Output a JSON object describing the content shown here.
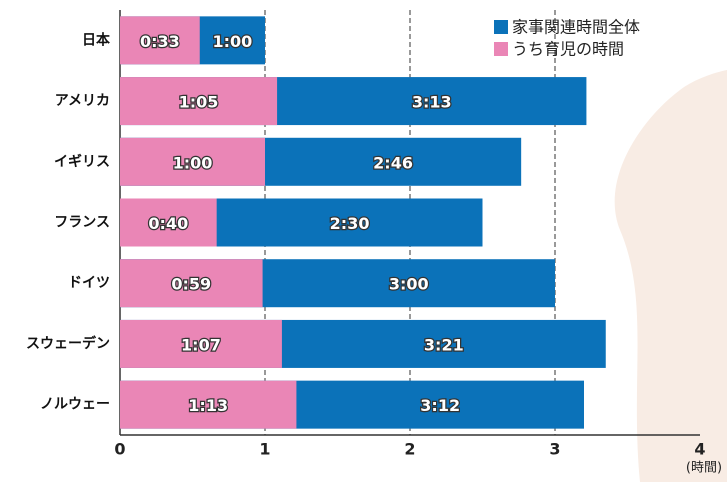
{
  "chart_data": {
    "type": "bar",
    "orientation": "horizontal",
    "categories": [
      "日本",
      "アメリカ",
      "イギリス",
      "フランス",
      "ドイツ",
      "スウェーデン",
      "ノルウェー"
    ],
    "series": [
      {
        "name": "家事関連時間全体",
        "color": "#0b72b9",
        "values": [
          1,
          3.216667,
          2.766667,
          2.5,
          3,
          3.35,
          3.2
        ],
        "value_labels": [
          "1:00",
          "3:13",
          "2:46",
          "2:30",
          "3:00",
          "3:21",
          "3:12"
        ]
      },
      {
        "name": "うち育児の時間",
        "color": "#ea86b6",
        "values": [
          0.55,
          1.083333,
          1,
          0.666667,
          0.983333,
          1.116667,
          1.216667
        ],
        "value_labels": [
          "0:33",
          "1:05",
          "1:00",
          "0:40",
          "0:59",
          "1:07",
          "1:13"
        ]
      }
    ],
    "xlim": [
      0,
      4
    ],
    "xticks": [
      0,
      1,
      2,
      3,
      4
    ],
    "xlabel": "(時間)",
    "grid": true,
    "legend": "top-right"
  }
}
